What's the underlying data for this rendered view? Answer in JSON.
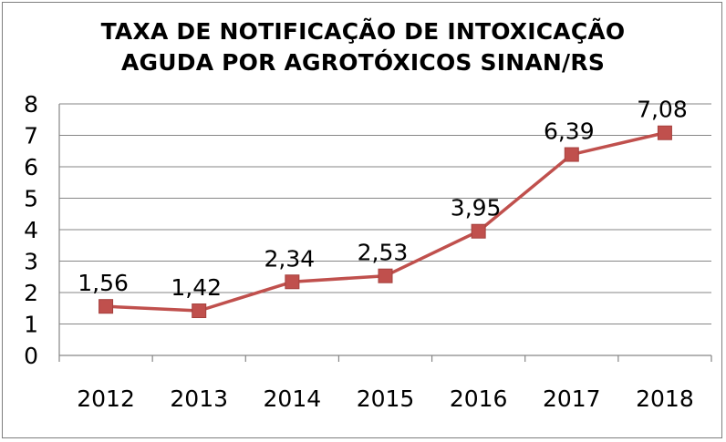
{
  "chart_data": {
    "type": "line",
    "title_line1": "TAXA DE NOTIFICAÇÃO DE INTOXICAÇÃO",
    "title_line2": "AGUDA POR AGROTÓXICOS SINAN/RS",
    "categories": [
      "2012",
      "2013",
      "2014",
      "2015",
      "2016",
      "2017",
      "2018"
    ],
    "series": [
      {
        "values": [
          1.56,
          1.42,
          2.34,
          2.53,
          3.95,
          6.39,
          7.08
        ],
        "labels": [
          "1,56",
          "1,42",
          "2,34",
          "2,53",
          "3,95",
          "6,39",
          "7,08"
        ]
      }
    ],
    "ylim": [
      0,
      8
    ],
    "yticks": [
      "0",
      "1",
      "2",
      "3",
      "4",
      "5",
      "6",
      "7",
      "8"
    ],
    "grid": true,
    "line_color": "#c0504d",
    "marker_color": "#c0504d",
    "marker": "square"
  }
}
